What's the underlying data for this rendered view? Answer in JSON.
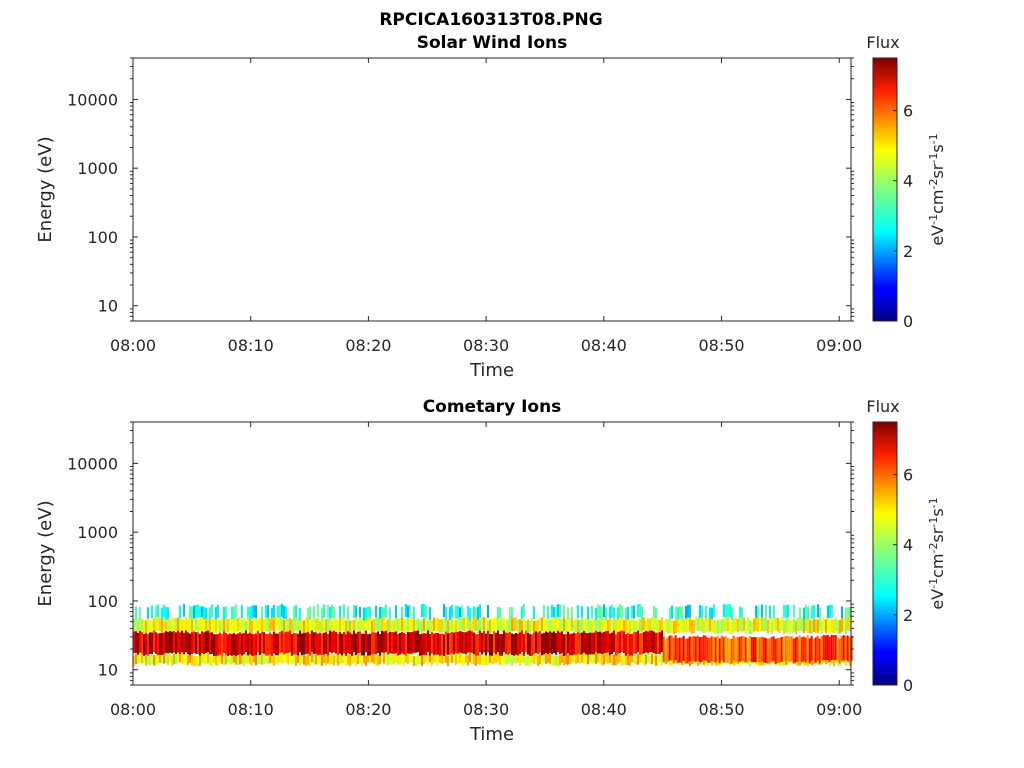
{
  "figure_title": "RPCICA160313T08.PNG",
  "chart_data": [
    {
      "type": "heatmap",
      "title": "Solar Wind Ions",
      "xlabel": "Time",
      "ylabel": "Energy (eV)",
      "xlim": [
        "08:00",
        "09:01"
      ],
      "x_ticks": [
        "08:00",
        "08:10",
        "08:20",
        "08:30",
        "08:40",
        "08:50",
        "09:00"
      ],
      "ylim": [
        6,
        40000
      ],
      "y_scale": "log",
      "y_ticks": [
        10,
        100,
        1000,
        10000
      ],
      "y_tick_labels": [
        "10",
        "100",
        "1000",
        "10000"
      ],
      "grid": false,
      "colorbar": {
        "title": "Flux",
        "label": "eV-1cm-2sr-1s-1",
        "range": [
          0,
          7.5
        ],
        "ticks": [
          0,
          2,
          4,
          6
        ],
        "tick_labels": [
          "0",
          "2",
          "4",
          "6"
        ],
        "colormap": "jet"
      },
      "bands": []
    },
    {
      "type": "heatmap",
      "title": "Cometary Ions",
      "xlabel": "Time",
      "ylabel": "Energy (eV)",
      "xlim": [
        "08:00",
        "09:01"
      ],
      "x_ticks": [
        "08:00",
        "08:10",
        "08:20",
        "08:30",
        "08:40",
        "08:50",
        "09:00"
      ],
      "ylim": [
        6,
        40000
      ],
      "y_scale": "log",
      "y_ticks": [
        10,
        100,
        1000,
        10000
      ],
      "y_tick_labels": [
        "10",
        "100",
        "1000",
        "10000"
      ],
      "grid": false,
      "colorbar": {
        "title": "Flux",
        "label": "eV-1cm-2sr-1s-1",
        "range": [
          0,
          7.5
        ],
        "ticks": [
          0,
          2,
          4,
          6
        ],
        "tick_labels": [
          "0",
          "2",
          "4",
          "6"
        ],
        "colormap": "jet"
      },
      "bands": [
        {
          "description": "weak flux fringe",
          "t_start": "08:00",
          "t_end": "09:01",
          "e_low": 55,
          "e_high": 85,
          "flux": 3.0
        },
        {
          "description": "moderate flux",
          "t_start": "08:00",
          "t_end": "09:01",
          "e_low": 35,
          "e_high": 55,
          "flux": 4.6
        },
        {
          "description": "moderate flux",
          "t_start": "08:00",
          "t_end": "09:01",
          "e_low": 12,
          "e_high": 17,
          "flux": 4.8
        },
        {
          "description": "core ion band",
          "t_start": "08:00",
          "t_end": "08:45",
          "e_low": 17,
          "e_high": 35,
          "flux": 6.8
        },
        {
          "description": "core ion band (weakening)",
          "t_start": "08:45",
          "t_end": "09:01",
          "e_low": 13,
          "e_high": 30,
          "flux": 6.0
        }
      ]
    }
  ]
}
